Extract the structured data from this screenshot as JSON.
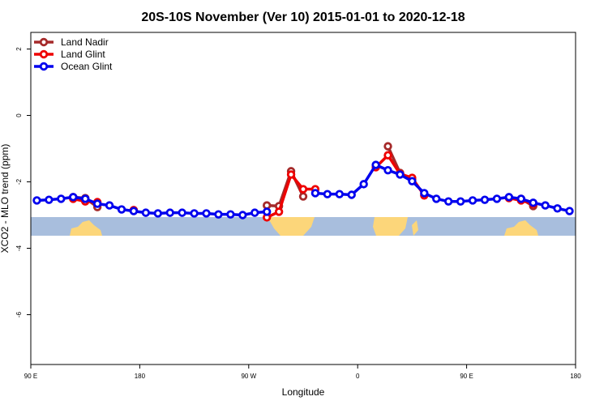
{
  "chart_data": {
    "type": "line",
    "title": "20S-10S November (Ver 10)   2015-01-01 to 2020-12-18",
    "xlabel": "Longitude",
    "ylabel": "XCO2 - MLO trend (ppm)",
    "x": [
      95,
      105,
      115,
      125,
      135,
      145,
      155,
      165,
      175,
      185,
      195,
      205,
      215,
      225,
      235,
      245,
      255,
      265,
      275,
      285,
      295,
      305,
      315,
      325,
      335,
      345,
      355,
      365,
      375,
      385,
      395,
      405,
      415,
      425,
      435,
      445,
      455,
      465,
      475,
      485,
      495,
      505,
      515,
      525,
      535
    ],
    "series": [
      {
        "name": "Land Nadir",
        "color": "#a52a2a",
        "values": [
          null,
          null,
          null,
          -2.46,
          -2.49,
          -2.76,
          null,
          null,
          null,
          null,
          null,
          null,
          null,
          null,
          null,
          null,
          null,
          null,
          null,
          -2.71,
          -2.73,
          -1.68,
          -2.44,
          null,
          null,
          null,
          null,
          null,
          null,
          -0.93,
          -1.73,
          -1.93,
          null,
          null,
          null,
          null,
          null,
          null,
          null,
          null,
          -2.51,
          -2.73,
          null,
          null,
          null
        ]
      },
      {
        "name": "Land Glint",
        "color": "#ee0000",
        "values": [
          null,
          null,
          null,
          -2.51,
          -2.59,
          -2.61,
          null,
          null,
          -2.85,
          null,
          null,
          null,
          null,
          null,
          null,
          null,
          null,
          null,
          null,
          -3.07,
          -2.9,
          -1.78,
          -2.22,
          -2.22,
          null,
          null,
          null,
          null,
          -1.56,
          -1.2,
          -1.76,
          -1.88,
          -2.41,
          null,
          null,
          null,
          null,
          null,
          null,
          -2.49,
          -2.56,
          -2.66,
          null,
          null,
          null
        ]
      },
      {
        "name": "Ocean Glint",
        "color": "#0000ee",
        "values": [
          -2.56,
          -2.54,
          -2.51,
          -2.46,
          -2.51,
          -2.66,
          -2.71,
          -2.83,
          -2.88,
          -2.93,
          -2.95,
          -2.93,
          -2.93,
          -2.95,
          -2.95,
          -2.98,
          -2.98,
          -3.0,
          -2.93,
          -2.9,
          null,
          null,
          null,
          -2.34,
          -2.37,
          -2.37,
          -2.39,
          -2.07,
          -1.49,
          -1.65,
          -1.78,
          -1.98,
          -2.34,
          -2.51,
          -2.59,
          -2.59,
          -2.56,
          -2.54,
          -2.51,
          -2.46,
          -2.51,
          -2.63,
          -2.71,
          -2.8,
          -2.88
        ]
      }
    ],
    "xlim": [
      90,
      540
    ],
    "xticks": [
      {
        "value": 90,
        "label": "90 E"
      },
      180,
      {
        "value": 270,
        "label": "90 W"
      },
      {
        "value": 360,
        "label": "0"
      },
      {
        "value": 450,
        "label": "90 E"
      },
      {
        "value": 540,
        "label": "180"
      }
    ],
    "ylim": [
      -7.5,
      2.5
    ],
    "yticks": [
      -6,
      -4,
      -2,
      0,
      2
    ],
    "legend": "top-left"
  }
}
